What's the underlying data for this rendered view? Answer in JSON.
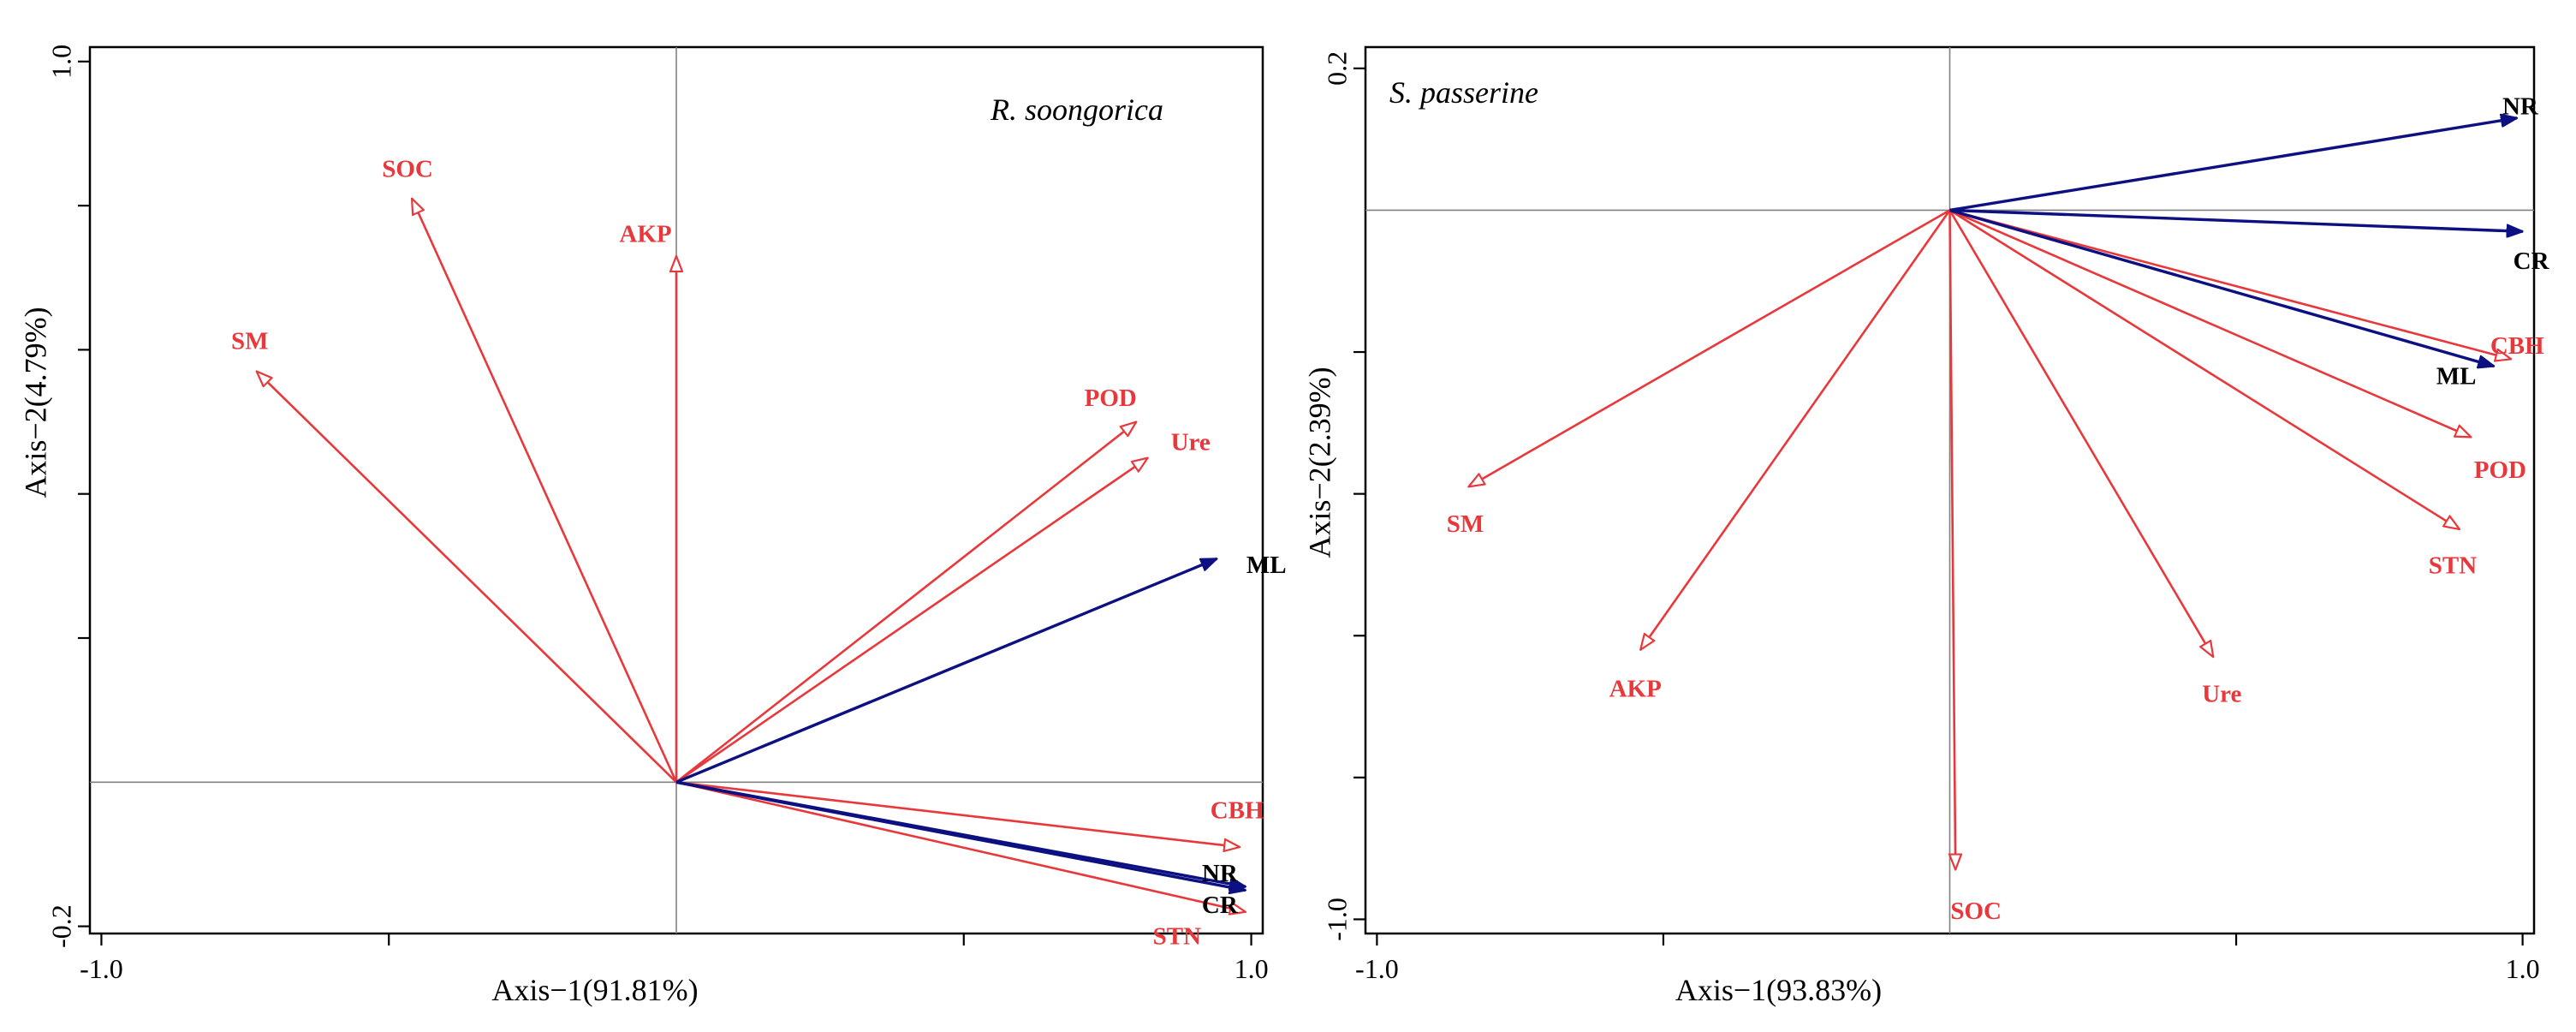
{
  "colors": {
    "env": "#e8383b",
    "resp": "#0d1080",
    "frame": "#000000",
    "ref": "#808080",
    "resp_label": "#000000"
  },
  "chart_data": [
    {
      "type": "biplot",
      "title": "R. soongorica",
      "xlabel": "Axis−1(91.81%)",
      "ylabel": "Axis−2(4.79%)",
      "xlim": [
        -1.02,
        1.02
      ],
      "ylim": [
        -0.21,
        1.02
      ],
      "xtick_labels": [
        {
          "value": -1.0,
          "label": "-1.0"
        },
        {
          "value": 1.0,
          "label": "1.0"
        }
      ],
      "xminor": [
        -0.5,
        0.5
      ],
      "ytick_labels": [
        {
          "value": 1.0,
          "label": "1.0"
        },
        {
          "value": -0.2,
          "label": "-0.2"
        }
      ],
      "yminor": [
        0.8,
        0.6,
        0.4,
        0.2
      ],
      "vectors": [
        {
          "name": "SOC",
          "group": "env",
          "x": -0.46,
          "y": 0.81
        },
        {
          "name": "AKP",
          "group": "env",
          "x": 0.0,
          "y": 0.73
        },
        {
          "name": "SM",
          "group": "env",
          "x": -0.73,
          "y": 0.57
        },
        {
          "name": "POD",
          "group": "env",
          "x": 0.8,
          "y": 0.5
        },
        {
          "name": "Ure",
          "group": "env",
          "x": 0.82,
          "y": 0.45
        },
        {
          "name": "ML",
          "group": "resp",
          "x": 0.94,
          "y": 0.31
        },
        {
          "name": "CBH",
          "group": "env",
          "x": 0.98,
          "y": -0.09
        },
        {
          "name": "NR",
          "group": "resp",
          "x": 0.99,
          "y": -0.145
        },
        {
          "name": "STN",
          "group": "env",
          "x": 0.99,
          "y": -0.18
        },
        {
          "name": "CR",
          "group": "resp",
          "x": 0.99,
          "y": -0.15
        }
      ]
    },
    {
      "type": "biplot",
      "title": "S. passerine",
      "xlabel": "Axis−1(93.83%)",
      "ylabel": "Axis−2(2.39%)",
      "xlim": [
        -1.02,
        1.02
      ],
      "ylim": [
        -1.02,
        0.23
      ],
      "xtick_labels": [
        {
          "value": -1.0,
          "label": "-1.0"
        },
        {
          "value": 1.0,
          "label": "1.0"
        }
      ],
      "xminor": [
        -0.5,
        0.5
      ],
      "ytick_labels": [
        {
          "value": 0.2,
          "label": "0.2"
        },
        {
          "value": -1.0,
          "label": "-1.0"
        }
      ],
      "yminor": [
        -0.2,
        -0.4,
        -0.6,
        -0.8
      ],
      "vectors": [
        {
          "name": "NR",
          "group": "resp",
          "x": 0.99,
          "y": 0.13
        },
        {
          "name": "CR",
          "group": "resp",
          "x": 1.0,
          "y": -0.03
        },
        {
          "name": "CBH",
          "group": "env",
          "x": 0.98,
          "y": -0.21
        },
        {
          "name": "ML",
          "group": "resp",
          "x": 0.95,
          "y": -0.22
        },
        {
          "name": "POD",
          "group": "env",
          "x": 0.91,
          "y": -0.32
        },
        {
          "name": "STN",
          "group": "env",
          "x": 0.89,
          "y": -0.45
        },
        {
          "name": "SM",
          "group": "env",
          "x": -0.84,
          "y": -0.39
        },
        {
          "name": "AKP",
          "group": "env",
          "x": -0.54,
          "y": -0.62
        },
        {
          "name": "Ure",
          "group": "env",
          "x": 0.46,
          "y": -0.63
        },
        {
          "name": "SOC",
          "group": "env",
          "x": 0.01,
          "y": -0.93
        }
      ]
    }
  ]
}
